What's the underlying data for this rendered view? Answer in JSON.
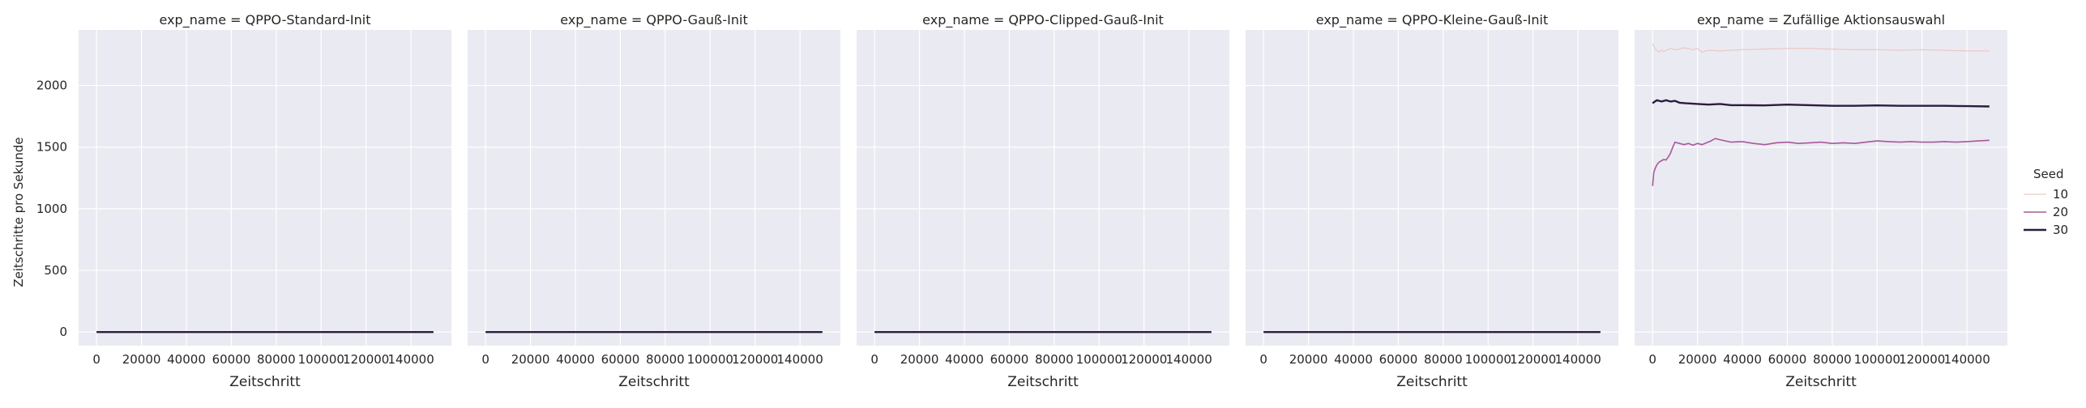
{
  "chart_data": {
    "type": "line",
    "layout": "facet-grid",
    "facet_var": "exp_name",
    "ylabel": "Zeitschritte pro Sekunde",
    "xlabel": "Zeitschritt",
    "xlim": [
      -8000,
      158000
    ],
    "ylim": [
      -110,
      2450
    ],
    "xticks": [
      0,
      20000,
      40000,
      60000,
      80000,
      100000,
      120000,
      140000
    ],
    "xtick_labels": [
      "0",
      "20000",
      "40000",
      "60000",
      "80000",
      "100000",
      "120000",
      "140000"
    ],
    "yticks": [
      0,
      500,
      1000,
      1500,
      2000
    ],
    "ytick_labels": [
      "0",
      "500",
      "1000",
      "1500",
      "2000"
    ],
    "grid": true,
    "background": "#eaeaf2",
    "legend": {
      "title": "Seed",
      "placement": "right",
      "entries": [
        {
          "label": "10",
          "color": "#ebc9c2",
          "width": 1.2
        },
        {
          "label": "20",
          "color": "#a8589a",
          "width": 1.6
        },
        {
          "label": "30",
          "color": "#2b1d3f",
          "width": 2.4
        }
      ]
    },
    "facets": [
      {
        "title": "exp_name = QPPO-Standard-Init",
        "series": [
          {
            "name": "10",
            "x": [
              0,
              150000
            ],
            "y": [
              0,
              0
            ]
          },
          {
            "name": "20",
            "x": [
              0,
              150000
            ],
            "y": [
              0,
              0
            ]
          },
          {
            "name": "30",
            "x": [
              0,
              150000
            ],
            "y": [
              0,
              0
            ]
          }
        ]
      },
      {
        "title": "exp_name = QPPO-Gauß-Init",
        "series": [
          {
            "name": "10",
            "x": [
              0,
              150000
            ],
            "y": [
              0,
              0
            ]
          },
          {
            "name": "20",
            "x": [
              0,
              150000
            ],
            "y": [
              0,
              0
            ]
          },
          {
            "name": "30",
            "x": [
              0,
              150000
            ],
            "y": [
              0,
              0
            ]
          }
        ]
      },
      {
        "title": "exp_name = QPPO-Clipped-Gauß-Init",
        "series": [
          {
            "name": "10",
            "x": [
              0,
              150000
            ],
            "y": [
              0,
              0
            ]
          },
          {
            "name": "20",
            "x": [
              0,
              150000
            ],
            "y": [
              0,
              0
            ]
          },
          {
            "name": "30",
            "x": [
              0,
              150000
            ],
            "y": [
              0,
              0
            ]
          }
        ]
      },
      {
        "title": "exp_name = QPPO-Kleine-Gauß-Init",
        "series": [
          {
            "name": "10",
            "x": [
              0,
              150000
            ],
            "y": [
              0,
              0
            ]
          },
          {
            "name": "20",
            "x": [
              0,
              150000
            ],
            "y": [
              0,
              0
            ]
          },
          {
            "name": "30",
            "x": [
              0,
              150000
            ],
            "y": [
              0,
              0
            ]
          }
        ]
      },
      {
        "title": "exp_name = Zufällige Aktionsauswahl",
        "series": [
          {
            "name": "10",
            "x": [
              0,
              1000,
              2000,
              3000,
              4000,
              5000,
              6000,
              8000,
              10000,
              12000,
              14000,
              16000,
              18000,
              20000,
              22000,
              25000,
              30000,
              40000,
              50000,
              60000,
              70000,
              80000,
              90000,
              100000,
              110000,
              120000,
              130000,
              140000,
              150000
            ],
            "y": [
              2340,
              2300,
              2280,
              2270,
              2290,
              2275,
              2285,
              2300,
              2290,
              2295,
              2305,
              2300,
              2290,
              2300,
              2270,
              2285,
              2280,
              2290,
              2295,
              2300,
              2300,
              2295,
              2290,
              2290,
              2285,
              2290,
              2285,
              2280,
              2280
            ]
          },
          {
            "name": "20",
            "x": [
              0,
              500,
              1000,
              2000,
              3000,
              4000,
              5000,
              6000,
              7000,
              8000,
              9000,
              10000,
              12000,
              14000,
              16000,
              18000,
              20000,
              22000,
              24000,
              26000,
              28000,
              30000,
              35000,
              40000,
              45000,
              50000,
              55000,
              60000,
              65000,
              70000,
              75000,
              80000,
              85000,
              90000,
              95000,
              100000,
              105000,
              110000,
              115000,
              120000,
              125000,
              130000,
              135000,
              140000,
              145000,
              150000
            ],
            "y": [
              1185,
              1290,
              1320,
              1360,
              1380,
              1390,
              1400,
              1395,
              1420,
              1450,
              1500,
              1540,
              1530,
              1520,
              1530,
              1515,
              1530,
              1520,
              1535,
              1550,
              1570,
              1560,
              1540,
              1545,
              1530,
              1520,
              1535,
              1540,
              1530,
              1535,
              1540,
              1530,
              1535,
              1530,
              1540,
              1550,
              1545,
              1540,
              1545,
              1540,
              1540,
              1545,
              1540,
              1545,
              1550,
              1555
            ]
          },
          {
            "name": "30",
            "x": [
              0,
              1000,
              2000,
              3000,
              4000,
              6000,
              8000,
              10000,
              12000,
              15000,
              20000,
              25000,
              30000,
              35000,
              40000,
              50000,
              60000,
              70000,
              80000,
              90000,
              100000,
              110000,
              120000,
              130000,
              140000,
              150000
            ],
            "y": [
              1855,
              1870,
              1880,
              1875,
              1870,
              1880,
              1870,
              1875,
              1860,
              1855,
              1850,
              1845,
              1850,
              1840,
              1840,
              1838,
              1845,
              1840,
              1835,
              1835,
              1838,
              1835,
              1835,
              1835,
              1832,
              1830
            ]
          }
        ]
      }
    ]
  }
}
